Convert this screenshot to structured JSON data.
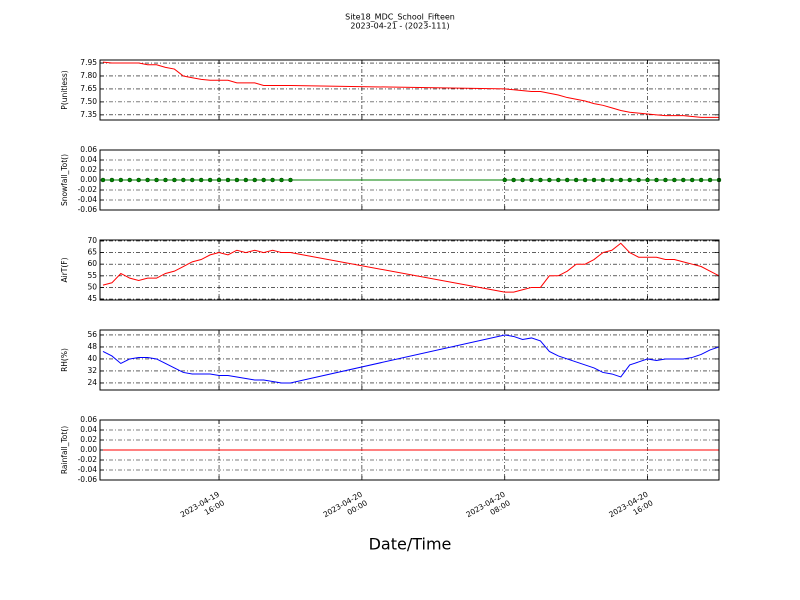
{
  "title": "Site18_MDC_School_Fifteen",
  "subtitle": "2023-04-21 - (2023-111)",
  "x_axis": {
    "label": "Date/Time",
    "x": [
      "2023-04-19 09:30",
      "2023-04-19 10:00",
      "2023-04-19 10:30",
      "2023-04-19 11:00",
      "2023-04-19 11:30",
      "2023-04-19 12:00",
      "2023-04-19 12:30",
      "2023-04-19 13:00",
      "2023-04-19 13:30",
      "2023-04-19 14:00",
      "2023-04-19 14:30",
      "2023-04-19 15:00",
      "2023-04-19 15:30",
      "2023-04-19 16:00",
      "2023-04-19 16:30",
      "2023-04-19 17:00",
      "2023-04-19 17:30",
      "2023-04-19 18:00",
      "2023-04-19 18:30",
      "2023-04-19 19:00",
      "2023-04-19 19:30",
      "2023-04-19 20:00",
      "2023-04-20 08:00",
      "2023-04-20 08:30",
      "2023-04-20 09:00",
      "2023-04-20 09:30",
      "2023-04-20 10:00",
      "2023-04-20 10:30",
      "2023-04-20 11:00",
      "2023-04-20 11:30",
      "2023-04-20 12:00",
      "2023-04-20 12:30",
      "2023-04-20 13:00",
      "2023-04-20 13:30",
      "2023-04-20 14:00",
      "2023-04-20 14:30",
      "2023-04-20 15:00",
      "2023-04-20 15:30",
      "2023-04-20 16:00",
      "2023-04-20 16:30",
      "2023-04-20 17:00",
      "2023-04-20 17:30",
      "2023-04-20 18:00",
      "2023-04-20 18:30",
      "2023-04-20 19:00",
      "2023-04-20 19:30",
      "2023-04-20 20:00"
    ],
    "xlim": [
      "2023-04-19 09:20",
      "2023-04-20 20:00"
    ],
    "xticks": [
      "2023-04-19 16:00",
      "2023-04-20 00:00",
      "2023-04-20 08:00",
      "2023-04-20 16:00"
    ]
  },
  "chart_data": [
    {
      "type": "line",
      "ylabel": "P(unitless)",
      "ylim": [
        7.29,
        7.985
      ],
      "yticks": [
        7.35,
        {
          "value": 7.5,
          "label": "7.50"
        },
        7.65,
        {
          "value": 7.8,
          "label": "7.80"
        },
        7.95
      ],
      "grid": true,
      "series": [
        {
          "color": "#ff0000",
          "marker": "none",
          "values": [
            7.96,
            7.95,
            7.95,
            7.95,
            7.95,
            7.93,
            7.93,
            7.9,
            7.88,
            7.8,
            7.78,
            7.76,
            7.75,
            7.75,
            7.75,
            7.72,
            7.72,
            7.72,
            7.69,
            7.69,
            7.69,
            7.69,
            7.65,
            7.64,
            7.63,
            7.62,
            7.62,
            7.6,
            7.58,
            7.55,
            7.53,
            7.51,
            7.48,
            7.46,
            7.43,
            7.4,
            7.38,
            7.37,
            7.36,
            7.35,
            7.34,
            7.34,
            7.34,
            7.33,
            7.32,
            7.32,
            7.32
          ]
        }
      ]
    },
    {
      "type": "line",
      "ylabel": "Snowfall_Tot()",
      "ylim": [
        -0.06,
        0.06
      ],
      "yticks": [
        -0.06,
        -0.04,
        -0.02,
        {
          "value": 0,
          "label": "0.00"
        },
        0.02,
        0.04,
        0.06
      ],
      "grid": true,
      "series": [
        {
          "color": "#008000",
          "marker": "circle",
          "values": [
            0,
            0,
            0,
            0,
            0,
            0,
            0,
            0,
            0,
            0,
            0,
            0,
            0,
            0,
            0,
            0,
            0,
            0,
            0,
            0,
            0,
            0,
            0,
            0,
            0,
            0,
            0,
            0,
            0,
            0,
            0,
            0,
            0,
            0,
            0,
            0,
            0,
            0,
            0,
            0,
            0,
            0,
            0,
            0,
            0,
            0,
            0
          ]
        }
      ]
    },
    {
      "type": "line",
      "ylabel": "AirT(F)",
      "ylim": [
        44.6,
        70.4
      ],
      "yticks": [
        45,
        50,
        55,
        60,
        65,
        70
      ],
      "grid": true,
      "series": [
        {
          "color": "#ff0000",
          "marker": "none",
          "values": [
            51,
            52,
            56,
            54,
            53,
            54,
            54,
            56,
            57,
            59,
            61,
            62,
            64,
            65,
            64,
            66,
            65,
            66,
            65,
            66,
            65,
            65,
            48,
            48,
            49,
            50,
            50,
            55,
            55,
            57,
            60,
            60,
            62,
            65,
            66,
            69,
            65,
            63,
            63,
            63,
            62,
            62,
            61,
            60,
            59,
            57,
            55
          ]
        }
      ]
    },
    {
      "type": "line",
      "ylabel": "RH(%)",
      "ylim": [
        19.3,
        59.3
      ],
      "yticks": [
        24,
        32,
        40,
        48,
        56
      ],
      "grid": true,
      "series": [
        {
          "color": "#0000ff",
          "marker": "none",
          "values": [
            45,
            42,
            37,
            40,
            41,
            41,
            40,
            37,
            34,
            31,
            30,
            30,
            30,
            29,
            29,
            28,
            27,
            26,
            26,
            25,
            24,
            24,
            56,
            55,
            53,
            54,
            52,
            45,
            42,
            40,
            38,
            36,
            34,
            31,
            30,
            28,
            36,
            38,
            40,
            39,
            40,
            40,
            40,
            41,
            43,
            46,
            48
          ]
        }
      ]
    },
    {
      "type": "line",
      "ylabel": "Rainfall_Tot()",
      "ylim": [
        -0.06,
        0.06
      ],
      "yticks": [
        -0.06,
        -0.04,
        -0.02,
        {
          "value": 0,
          "label": "0.00"
        },
        0.02,
        0.04,
        0.06
      ],
      "grid": true,
      "series": [
        {
          "color": "#ff0000",
          "marker": "none",
          "values": [
            0,
            0,
            0,
            0,
            0,
            0,
            0,
            0,
            0,
            0,
            0,
            0,
            0,
            0,
            0,
            0,
            0,
            0,
            0,
            0,
            0,
            0,
            0,
            0,
            0,
            0,
            0,
            0,
            0,
            0,
            0,
            0,
            0,
            0,
            0,
            0,
            0,
            0,
            0,
            0,
            0,
            0,
            0,
            0,
            0,
            0,
            0
          ]
        }
      ]
    }
  ]
}
